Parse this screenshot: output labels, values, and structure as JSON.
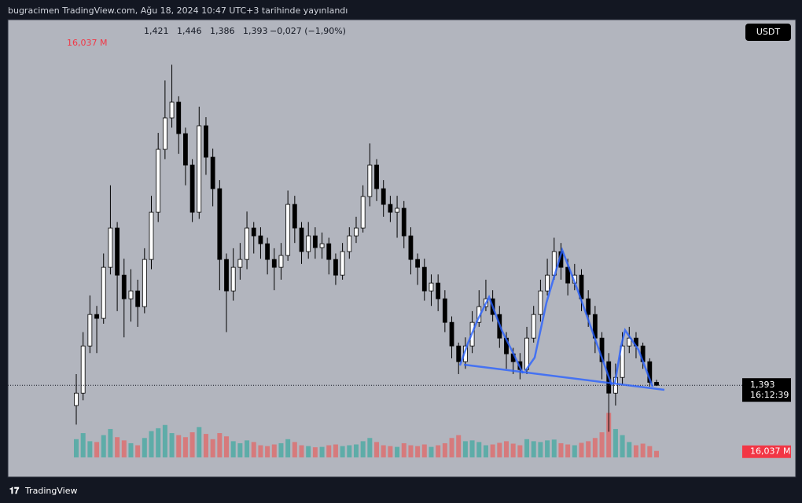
{
  "header": {
    "published": "bugracimen TradingView.com, Ağu 18, 2024 10:47 UTC+3 tarihinde yayınlandı"
  },
  "footer": {
    "brand": "TradingView"
  },
  "chart_data": {
    "type": "candlestick",
    "currency": "USDT",
    "last_bar_labels": [
      "1,421",
      "1,446",
      "1,386",
      "1,393"
    ],
    "change_label": "−0,027 (−1,90%)",
    "price_label": "1,393",
    "countdown": "16:12:39",
    "ylim": [
      0.72,
      4.88
    ],
    "up_color": "#ffffff",
    "down_color": "#000000",
    "open": [
      1.2,
      1.318,
      1.768,
      2.068,
      2.031,
      2.518,
      2.893,
      2.443,
      2.218,
      2.293,
      2.143,
      2.593,
      3.043,
      3.643,
      3.943,
      4.093,
      3.793,
      3.493,
      3.043,
      3.868,
      3.568,
      3.268,
      2.593,
      2.293,
      2.518,
      2.593,
      2.893,
      2.818,
      2.743,
      2.593,
      2.518,
      2.631,
      3.118,
      2.893,
      2.668,
      2.818,
      2.706,
      2.743,
      2.593,
      2.443,
      2.668,
      2.818,
      2.893,
      3.193,
      3.493,
      3.268,
      3.118,
      3.043,
      3.081,
      2.818,
      2.593,
      2.518,
      2.293,
      2.368,
      2.218,
      1.993,
      1.768,
      1.618,
      1.768,
      1.993,
      2.143,
      2.218,
      2.068,
      1.843,
      1.693,
      1.618,
      1.543,
      1.843,
      2.068,
      2.293,
      2.443,
      2.668,
      2.518,
      2.368,
      2.443,
      2.218,
      2.068,
      1.843,
      1.618,
      1.318,
      1.468,
      1.768,
      1.843,
      1.768,
      1.618,
      1.421
    ],
    "high": [
      1.5,
      1.9,
      2.25,
      2.15,
      2.65,
      3.3,
      2.95,
      2.6,
      2.5,
      2.4,
      2.7,
      3.2,
      3.8,
      4.3,
      4.45,
      4.15,
      3.85,
      3.55,
      4.05,
      3.95,
      3.65,
      3.35,
      2.65,
      2.7,
      2.75,
      3.05,
      2.95,
      2.9,
      2.8,
      2.7,
      2.75,
      3.25,
      3.2,
      2.95,
      2.95,
      2.9,
      2.85,
      2.8,
      2.65,
      2.75,
      2.9,
      3.0,
      3.3,
      3.7,
      3.55,
      3.35,
      3.2,
      3.2,
      3.15,
      2.9,
      2.65,
      2.6,
      2.45,
      2.45,
      2.3,
      2.05,
      1.8,
      1.85,
      2.1,
      2.3,
      2.4,
      2.3,
      2.15,
      1.9,
      1.75,
      1.7,
      1.95,
      2.15,
      2.4,
      2.6,
      2.8,
      2.75,
      2.6,
      2.55,
      2.5,
      2.3,
      2.15,
      1.9,
      1.7,
      1.6,
      1.9,
      1.95,
      1.9,
      1.8,
      1.65,
      1.446
    ],
    "low": [
      1.018,
      1.25,
      1.7,
      1.7,
      1.98,
      2.45,
      2.1,
      1.85,
      2.0,
      1.95,
      2.08,
      2.5,
      2.95,
      3.55,
      3.85,
      3.6,
      3.3,
      2.95,
      2.98,
      3.4,
      3.1,
      2.3,
      1.9,
      2.2,
      2.4,
      2.5,
      2.65,
      2.6,
      2.45,
      2.3,
      2.4,
      2.58,
      2.75,
      2.55,
      2.6,
      2.6,
      2.6,
      2.45,
      2.35,
      2.4,
      2.6,
      2.75,
      2.85,
      3.1,
      3.15,
      3.0,
      2.95,
      2.8,
      2.7,
      2.45,
      2.35,
      2.2,
      2.15,
      2.1,
      1.9,
      1.65,
      1.5,
      1.55,
      1.7,
      1.95,
      2.1,
      2.0,
      1.75,
      1.55,
      1.5,
      1.45,
      1.5,
      1.8,
      2.0,
      2.25,
      2.4,
      2.4,
      2.25,
      2.3,
      2.1,
      1.95,
      1.7,
      1.45,
      0.95,
      1.2,
      1.4,
      1.7,
      1.65,
      1.55,
      1.38,
      1.386
    ],
    "close": [
      1.318,
      1.768,
      2.068,
      2.031,
      2.518,
      2.893,
      2.443,
      2.218,
      2.293,
      2.143,
      2.593,
      3.043,
      3.643,
      3.943,
      4.093,
      3.793,
      3.493,
      3.043,
      3.868,
      3.568,
      3.268,
      2.593,
      2.293,
      2.518,
      2.593,
      2.893,
      2.818,
      2.743,
      2.593,
      2.518,
      2.631,
      3.118,
      2.893,
      2.668,
      2.818,
      2.706,
      2.743,
      2.593,
      2.443,
      2.668,
      2.818,
      2.893,
      3.193,
      3.493,
      3.268,
      3.118,
      3.043,
      3.081,
      2.818,
      2.593,
      2.518,
      2.293,
      2.368,
      2.218,
      1.993,
      1.768,
      1.618,
      1.768,
      1.993,
      2.143,
      2.218,
      2.068,
      1.843,
      1.693,
      1.618,
      1.543,
      1.843,
      2.068,
      2.293,
      2.443,
      2.668,
      2.518,
      2.368,
      2.443,
      2.218,
      2.068,
      1.843,
      1.618,
      1.318,
      1.468,
      1.768,
      1.843,
      1.768,
      1.618,
      1.421,
      1.393
    ],
    "volume": {
      "ylim": [
        0,
        130
      ],
      "up_color": "#26a69a",
      "down_color": "#ef5350",
      "last_label": "16,037 M",
      "values": [
        45,
        60,
        40,
        38,
        55,
        70,
        50,
        42,
        35,
        30,
        48,
        65,
        72,
        80,
        60,
        55,
        50,
        62,
        75,
        58,
        45,
        60,
        52,
        40,
        35,
        42,
        38,
        30,
        28,
        32,
        35,
        45,
        38,
        30,
        28,
        25,
        26,
        30,
        32,
        28,
        30,
        32,
        40,
        48,
        38,
        30,
        28,
        26,
        35,
        30,
        28,
        32,
        26,
        30,
        35,
        48,
        55,
        40,
        42,
        38,
        30,
        32,
        36,
        40,
        34,
        30,
        45,
        40,
        38,
        42,
        44,
        35,
        32,
        30,
        36,
        40,
        48,
        62,
        110,
        70,
        55,
        38,
        30,
        34,
        28,
        16.037
      ]
    }
  }
}
